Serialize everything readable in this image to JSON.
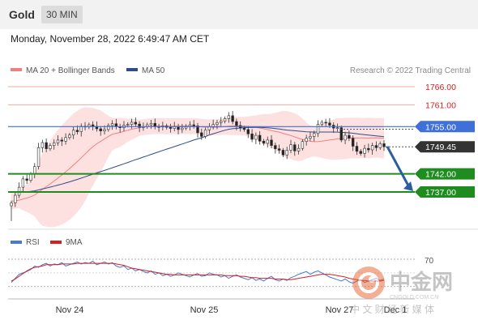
{
  "header": {
    "title": "Gold",
    "timeframe": "30 MIN"
  },
  "date_line": "Monday, November 28, 2022 6:49:47 AM CET",
  "legend": {
    "items": [
      {
        "label": "MA 20 + Bollinger Bands",
        "color": "#f08080"
      },
      {
        "label": "MA 50",
        "color": "#2e4d8a"
      }
    ],
    "credit": "Research © 2022 Trading Central"
  },
  "colors": {
    "up_candle": "#ffffff",
    "down_candle": "#222222",
    "bollinger_fill": "#fde0e0",
    "ma20": "#f08080",
    "ma50": "#2e4d8a",
    "support": "#1e8c1e",
    "resistance_faint": "#f2a7a0",
    "pivot": "#3f6fd8",
    "price_tag": "#333333",
    "arrow": "#2a5f9e",
    "rsi": "#4a78d8",
    "rsi_ma": "#d42020"
  },
  "chart_data": [
    {
      "type": "candlestick",
      "title": "Gold",
      "ylim": [
        1728.5,
        1770
      ],
      "x": [
        "Nov 24",
        "Nov 25",
        "Nov 27",
        "Dec 1"
      ],
      "levels": [
        {
          "value": 1766.0,
          "label": "1766.00",
          "kind": "resistance"
        },
        {
          "value": 1761.0,
          "label": "1761.00",
          "kind": "resistance"
        },
        {
          "value": 1755.0,
          "label": "1755.00",
          "kind": "pivot"
        },
        {
          "value": 1749.45,
          "label": "1749.45",
          "kind": "last-price"
        },
        {
          "value": 1742.0,
          "label": "1742.00",
          "kind": "support"
        },
        {
          "value": 1737.0,
          "label": "1737.00",
          "kind": "support"
        }
      ],
      "arrow": {
        "from": 1749.5,
        "to": 1737.0
      },
      "closes": [
        1734.0,
        1736.1,
        1738.3,
        1740.6,
        1740.2,
        1741.9,
        1744.0,
        1749.2,
        1750.6,
        1748.9,
        1749.8,
        1750.5,
        1751.3,
        1751.0,
        1752.0,
        1752.7,
        1754.0,
        1753.6,
        1755.1,
        1754.9,
        1755.5,
        1755.1,
        1754.4,
        1753.8,
        1754.2,
        1755.3,
        1755.8,
        1755.0,
        1754.7,
        1755.4,
        1755.6,
        1756.2,
        1755.7,
        1754.8,
        1755.0,
        1755.5,
        1755.9,
        1755.0,
        1754.9,
        1755.2,
        1754.8,
        1754.5,
        1755.0,
        1754.2,
        1754.6,
        1755.1,
        1755.5,
        1755.2,
        1753.3,
        1752.3,
        1754.1,
        1755.0,
        1755.6,
        1756.1,
        1756.5,
        1757.2,
        1758.0,
        1756.4,
        1755.3,
        1754.6,
        1754.2,
        1753.0,
        1751.5,
        1752.6,
        1751.0,
        1750.4,
        1751.3,
        1749.8,
        1748.9,
        1748.5,
        1747.2,
        1748.5,
        1750.0,
        1748.3,
        1749.0,
        1750.9,
        1751.8,
        1752.3,
        1753.1,
        1755.6,
        1756.2,
        1756.0,
        1755.4,
        1754.6,
        1754.7,
        1751.3,
        1752.6,
        1751.8,
        1749.6,
        1748.2,
        1747.6,
        1749.0,
        1748.6,
        1749.8,
        1749.2,
        1750.3,
        1749.45
      ],
      "rsi": {
        "legend": [
          "RSI",
          "9MA"
        ],
        "levels": [
          70,
          30
        ],
        "ylim": [
          20,
          80
        ],
        "values": [
          36,
          42,
          48,
          50,
          52,
          55,
          60,
          58,
          62,
          64,
          60,
          63,
          62,
          65,
          60,
          62,
          64,
          66,
          63,
          65,
          64,
          67,
          62,
          64,
          66,
          63,
          65,
          60,
          58,
          60,
          55,
          57,
          53,
          55,
          52,
          50,
          53,
          48,
          50,
          46,
          48,
          45,
          47,
          50,
          48,
          46,
          44,
          47,
          49,
          45,
          46,
          50,
          48,
          47,
          44,
          46,
          42,
          45,
          47,
          44,
          42,
          40,
          43,
          39,
          41,
          38,
          42,
          45,
          40,
          38,
          41,
          39,
          43,
          45,
          48,
          50,
          52,
          48,
          51,
          53,
          50,
          47,
          44,
          42,
          40,
          38,
          41,
          37,
          35,
          38,
          40,
          36,
          38,
          40,
          42,
          39,
          41
        ],
        "ma_values": [
          38,
          41,
          45,
          49,
          53,
          56,
          58,
          59,
          60,
          62,
          62,
          62,
          62,
          63,
          63,
          63,
          63,
          64,
          64,
          64,
          64,
          64,
          64,
          64,
          64,
          64,
          64,
          63,
          62,
          61,
          59,
          57,
          56,
          55,
          54,
          53,
          52,
          51,
          50,
          49,
          48,
          48,
          47,
          47,
          47,
          47,
          47,
          47,
          47,
          47,
          47,
          47,
          47,
          47,
          47,
          46,
          46,
          46,
          46,
          45,
          45,
          44,
          43,
          43,
          42,
          42,
          42,
          42,
          41,
          41,
          41,
          40,
          40,
          41,
          42,
          43,
          44,
          45,
          46,
          47,
          48,
          48,
          48,
          47,
          46,
          45,
          44,
          42,
          41,
          40,
          39,
          39,
          38,
          38,
          38,
          38,
          39
        ]
      }
    }
  ],
  "watermark": {
    "brand": "中金网",
    "domain": "CNGOLD.COM.CN",
    "tagline": "中 文 财 经 新 媒 体"
  }
}
